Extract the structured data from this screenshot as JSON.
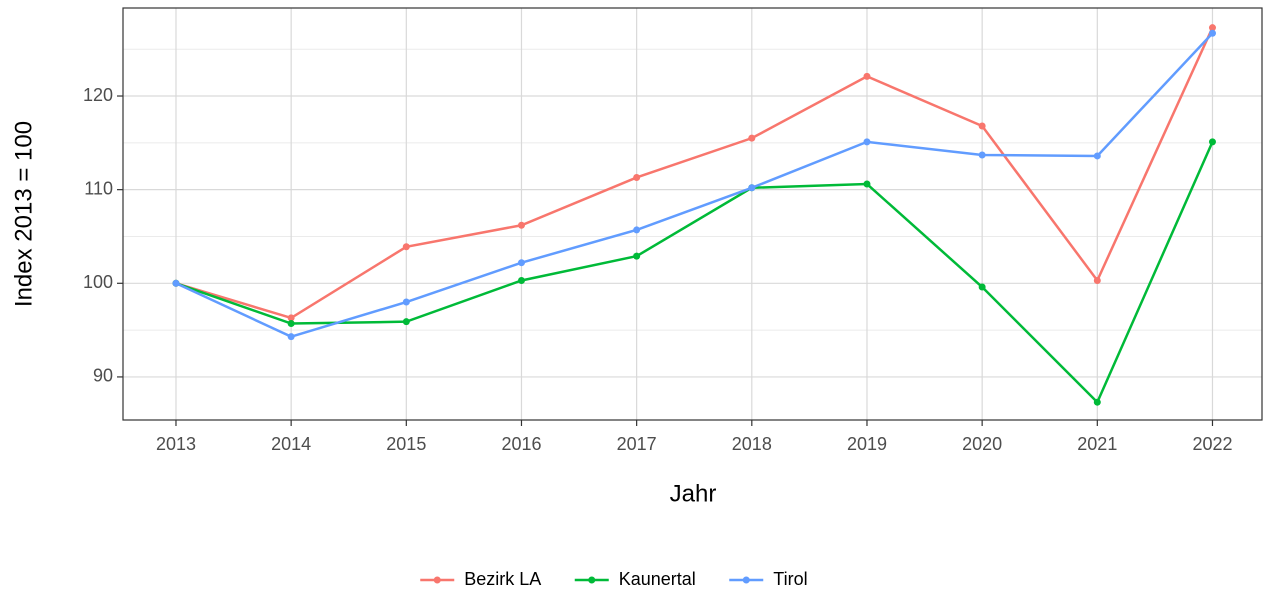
{
  "chart_data": {
    "type": "line",
    "x_label": "Jahr",
    "y_label": "Index  2013  = 100",
    "x": [
      2013,
      2014,
      2015,
      2016,
      2017,
      2018,
      2019,
      2020,
      2021,
      2022
    ],
    "series": [
      {
        "name": "Bezirk LA",
        "color": "#f8766d",
        "values": [
          100,
          96.3,
          103.9,
          106.2,
          111.3,
          115.5,
          122.1,
          116.8,
          100.3,
          127.3
        ]
      },
      {
        "name": "Kaunertal",
        "color": "#00ba38",
        "values": [
          100,
          95.7,
          95.9,
          100.3,
          102.9,
          110.2,
          110.6,
          99.6,
          87.3,
          115.1
        ]
      },
      {
        "name": "Tirol",
        "color": "#619cff",
        "values": [
          100,
          94.3,
          98.0,
          102.2,
          105.7,
          110.2,
          115.1,
          113.7,
          113.6,
          126.7
        ]
      }
    ],
    "xlim": [
      2012.54,
      2022.43
    ],
    "xticks": [
      2013,
      2014,
      2015,
      2016,
      2017,
      2018,
      2019,
      2020,
      2021,
      2022
    ],
    "ylim": [
      85.4,
      129.4
    ],
    "yticks": [
      90,
      100,
      110,
      120
    ],
    "y_minor_ticks": [
      95,
      105,
      115,
      125
    ],
    "grid": true,
    "legend": "bottom"
  }
}
